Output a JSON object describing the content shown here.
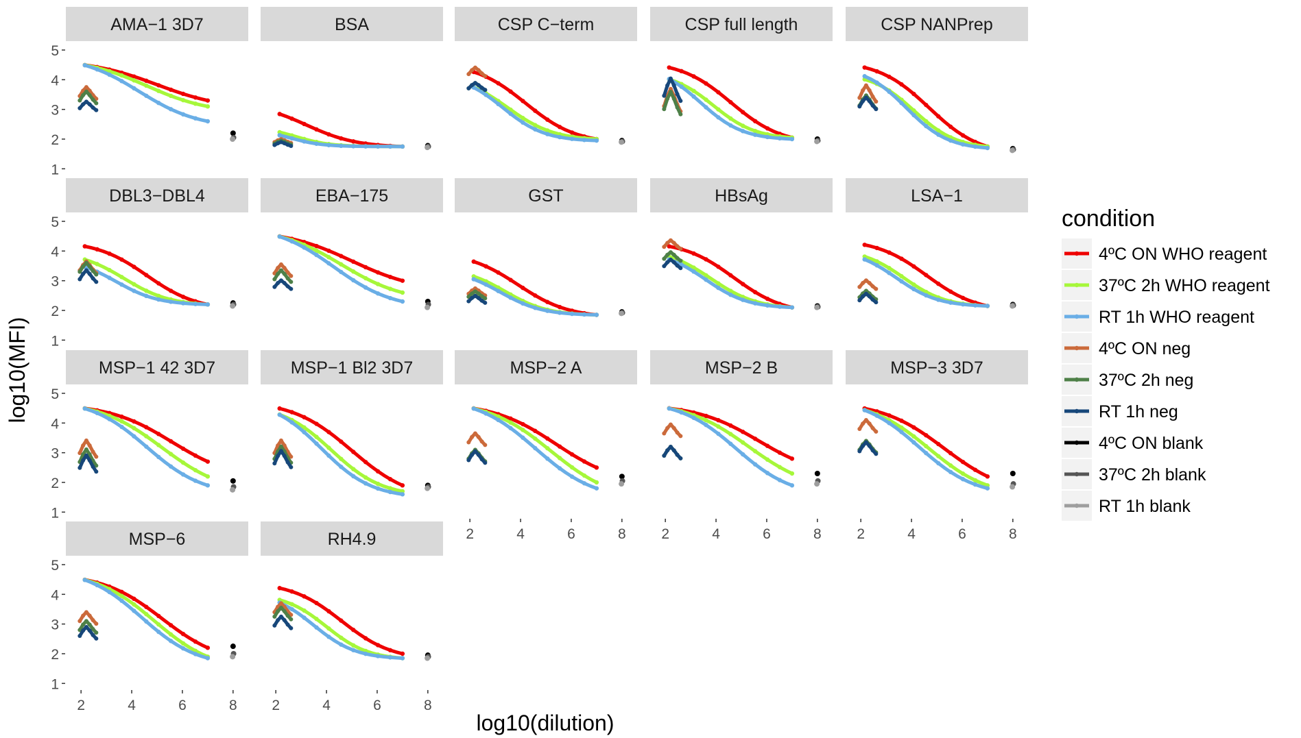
{
  "chart_data": {
    "type": "line",
    "layout": "facet_wrap",
    "xlabel": "log10(dilution)",
    "ylabel": "log10(MFI)",
    "xlim": [
      1.4,
      8.6
    ],
    "ylim": [
      0.8,
      5.3
    ],
    "x_ticks": [
      2,
      4,
      6,
      8
    ],
    "y_ticks": [
      1,
      2,
      3,
      4,
      5
    ],
    "legend": {
      "title": "condition",
      "position": "right",
      "entries": [
        {
          "label": "4ºC ON WHO reagent",
          "color": "#ee0000"
        },
        {
          "label": "37ºC 2h WHO reagent",
          "color": "#a6f73a"
        },
        {
          "label": "RT 1h WHO reagent",
          "color": "#6aaee6"
        },
        {
          "label": "4ºC ON neg",
          "color": "#cb6a3b"
        },
        {
          "label": "37ºC 2h neg",
          "color": "#4e8048"
        },
        {
          "label": "RT 1h neg",
          "color": "#17477a"
        },
        {
          "label": "4ºC ON blank",
          "color": "#000000"
        },
        {
          "label": "37ºC 2h blank",
          "color": "#555555"
        },
        {
          "label": "RT 1h blank",
          "color": "#9e9e9e"
        }
      ]
    },
    "panels": [
      {
        "title": "AMA−1 3D7",
        "params": {
          "reagent": [
            [
              4.5,
              3.3,
              5.0,
              0.75,
              2.1
            ],
            [
              4.5,
              3.1,
              4.6,
              0.8,
              2.1
            ],
            [
              4.5,
              2.6,
              4.3,
              0.85,
              2.1
            ]
          ],
          "neg": [
            [
              3.6,
              0.05
            ],
            [
              3.45,
              0.05
            ],
            [
              3.15,
              0.03
            ]
          ],
          "blank": [
            2.2,
            2.05,
            2.0
          ]
        }
      },
      {
        "title": "BSA",
        "params": {
          "reagent": [
            [
              2.8,
              1.75,
              3.2,
              1.0,
              2.3
            ],
            [
              2.2,
              1.75,
              2.8,
              1.5,
              2.3
            ],
            [
              2.1,
              1.75,
              2.6,
              1.6,
              2.3
            ]
          ],
          "neg": [
            [
              1.95,
              0.0
            ],
            [
              1.9,
              0.0
            ],
            [
              1.85,
              0.0
            ]
          ],
          "blank": [
            1.78,
            1.75,
            1.72
          ]
        }
      },
      {
        "title": "CSP C−term",
        "params": {
          "reagent": [
            [
              4.3,
              2.0,
              4.2,
              1.0,
              2.0
            ],
            [
              3.8,
              2.0,
              3.5,
              1.1,
              2.0
            ],
            [
              3.8,
              1.95,
              3.3,
              1.2,
              2.0
            ]
          ],
          "neg": [
            [
              4.3,
              0.03
            ],
            [
              3.8,
              0.02
            ],
            [
              3.8,
              0.02
            ]
          ],
          "blank": [
            1.95,
            1.92,
            1.9
          ]
        }
      },
      {
        "title": "CSP full length",
        "params": {
          "reagent": [
            [
              4.4,
              2.05,
              4.6,
              1.0,
              2.2
            ],
            [
              4.0,
              2.05,
              3.9,
              1.2,
              2.2
            ],
            [
              4.0,
              2.0,
              3.4,
              1.2,
              2.2
            ]
          ],
          "neg": [
            [
              3.4,
              0.12
            ],
            [
              3.3,
              0.12
            ],
            [
              3.75,
              0.12
            ]
          ],
          "blank": [
            2.0,
            1.95,
            1.92
          ]
        }
      },
      {
        "title": "CSP NANPrep",
        "params": {
          "reagent": [
            [
              4.4,
              1.75,
              4.7,
              1.0,
              2.2
            ],
            [
              4.0,
              1.75,
              4.1,
              1.2,
              2.2
            ],
            [
              4.1,
              1.7,
              3.8,
              1.2,
              2.2
            ]
          ],
          "neg": [
            [
              3.6,
              0.08
            ],
            [
              3.3,
              0.06
            ],
            [
              3.25,
              0.05
            ]
          ],
          "blank": [
            1.68,
            1.65,
            1.62
          ]
        }
      },
      {
        "title": "DBL3−DBL4",
        "params": {
          "reagent": [
            [
              4.15,
              2.2,
              4.6,
              1.0,
              2.2
            ],
            [
              3.7,
              2.2,
              3.7,
              1.1,
              2.2
            ],
            [
              3.45,
              2.2,
              3.4,
              1.2,
              2.2
            ]
          ],
          "neg": [
            [
              3.5,
              0.05
            ],
            [
              3.45,
              0.05
            ],
            [
              3.2,
              0.05
            ]
          ],
          "blank": [
            2.25,
            2.2,
            2.15
          ]
        }
      },
      {
        "title": "EBA−175",
        "params": {
          "reagent": [
            [
              4.5,
              3.0,
              5.0,
              0.75,
              2.1
            ],
            [
              4.5,
              2.6,
              4.6,
              0.8,
              2.1
            ],
            [
              4.5,
              2.3,
              4.3,
              0.85,
              2.1
            ]
          ],
          "neg": [
            [
              3.4,
              0.05
            ],
            [
              3.2,
              0.05
            ],
            [
              2.9,
              0.03
            ]
          ],
          "blank": [
            2.3,
            2.2,
            2.1
          ]
        }
      },
      {
        "title": "GST",
        "params": {
          "reagent": [
            [
              3.6,
              1.85,
              3.9,
              1.0,
              2.3
            ],
            [
              3.1,
              1.85,
              3.4,
              1.2,
              2.3
            ],
            [
              3.0,
              1.85,
              3.2,
              1.2,
              2.3
            ]
          ],
          "neg": [
            [
              2.65,
              0.02
            ],
            [
              2.55,
              0.02
            ],
            [
              2.4,
              0.02
            ]
          ],
          "blank": [
            1.95,
            1.92,
            1.9
          ]
        }
      },
      {
        "title": "HBsAg",
        "params": {
          "reagent": [
            [
              4.15,
              2.1,
              4.7,
              1.0,
              2.2
            ],
            [
              3.8,
              2.1,
              3.8,
              1.1,
              2.2
            ],
            [
              3.7,
              2.1,
              3.6,
              1.2,
              2.2
            ]
          ],
          "neg": [
            [
              4.25,
              0.03
            ],
            [
              3.85,
              0.03
            ],
            [
              3.6,
              0.03
            ]
          ],
          "blank": [
            2.15,
            2.12,
            2.1
          ]
        }
      },
      {
        "title": "LSA−1",
        "params": {
          "reagent": [
            [
              4.2,
              2.15,
              4.6,
              1.0,
              2.2
            ],
            [
              3.8,
              2.15,
              3.7,
              1.2,
              2.2
            ],
            [
              3.7,
              2.15,
              3.4,
              1.2,
              2.2
            ]
          ],
          "neg": [
            [
              2.9,
              0.03
            ],
            [
              2.55,
              0.03
            ],
            [
              2.45,
              0.03
            ]
          ],
          "blank": [
            2.2,
            2.17,
            2.15
          ]
        }
      },
      {
        "title": "MSP−1 42 3D7",
        "params": {
          "reagent": [
            [
              4.5,
              2.7,
              5.6,
              0.8,
              2.1
            ],
            [
              4.5,
              2.2,
              5.2,
              0.8,
              2.1
            ],
            [
              4.5,
              1.9,
              4.6,
              0.9,
              2.1
            ]
          ],
          "neg": [
            [
              3.2,
              0.08
            ],
            [
              2.9,
              0.08
            ],
            [
              2.7,
              0.08
            ]
          ],
          "blank": [
            2.05,
            1.85,
            1.75
          ]
        }
      },
      {
        "title": "MSP−1 Bl2 3D7",
        "params": {
          "reagent": [
            [
              4.5,
              1.9,
              5.0,
              0.85,
              2.1
            ],
            [
              4.3,
              1.7,
              4.2,
              1.0,
              2.1
            ],
            [
              4.3,
              1.6,
              3.8,
              1.0,
              2.1
            ]
          ],
          "neg": [
            [
              3.2,
              0.08
            ],
            [
              3.0,
              0.08
            ],
            [
              2.85,
              0.08
            ]
          ],
          "blank": [
            1.9,
            1.85,
            1.8
          ]
        }
      },
      {
        "title": "MSP−2 A",
        "params": {
          "reagent": [
            [
              4.5,
              2.5,
              5.4,
              0.8,
              2.1
            ],
            [
              4.5,
              2.0,
              5.2,
              0.8,
              2.1
            ],
            [
              4.5,
              1.8,
              4.6,
              0.85,
              2.1
            ]
          ],
          "neg": [
            [
              3.5,
              0.05
            ],
            [
              2.95,
              0.05
            ],
            [
              2.9,
              0.05
            ]
          ],
          "blank": [
            2.2,
            2.05,
            1.95
          ]
        }
      },
      {
        "title": "MSP−2 B",
        "params": {
          "reagent": [
            [
              4.5,
              2.8,
              5.7,
              0.8,
              2.1
            ],
            [
              4.5,
              2.3,
              5.3,
              0.8,
              2.1
            ],
            [
              4.5,
              1.9,
              4.8,
              0.9,
              2.1
            ]
          ],
          "neg": [
            [
              3.8,
              0.05
            ],
            [
              3.05,
              0.05
            ],
            [
              3.05,
              0.05
            ]
          ],
          "blank": [
            2.3,
            2.05,
            1.95
          ]
        }
      },
      {
        "title": "MSP−3 3D7",
        "params": {
          "reagent": [
            [
              4.5,
              2.2,
              5.3,
              0.8,
              2.1
            ],
            [
              4.45,
              1.9,
              4.7,
              0.85,
              2.1
            ],
            [
              4.45,
              1.8,
              4.3,
              0.9,
              2.1
            ]
          ],
          "neg": [
            [
              3.95,
              0.05
            ],
            [
              3.25,
              0.05
            ],
            [
              3.2,
              0.05
            ]
          ],
          "blank": [
            2.3,
            1.95,
            1.85
          ]
        }
      },
      {
        "title": "MSP−6",
        "params": {
          "reagent": [
            [
              4.5,
              2.2,
              5.2,
              0.85,
              2.1
            ],
            [
              4.5,
              1.9,
              4.9,
              0.85,
              2.1
            ],
            [
              4.5,
              1.85,
              4.4,
              0.9,
              2.1
            ]
          ],
          "neg": [
            [
              3.25,
              0.05
            ],
            [
              2.95,
              0.05
            ],
            [
              2.75,
              0.05
            ]
          ],
          "blank": [
            2.25,
            2.0,
            1.9
          ]
        }
      },
      {
        "title": "RH4.9",
        "params": {
          "reagent": [
            [
              4.2,
              2.0,
              4.6,
              1.0,
              2.2
            ],
            [
              3.8,
              1.85,
              4.0,
              1.2,
              2.2
            ],
            [
              3.7,
              1.85,
              3.5,
              1.2,
              2.2
            ]
          ],
          "neg": [
            [
              3.55,
              0.05
            ],
            [
              3.4,
              0.05
            ],
            [
              3.1,
              0.05
            ]
          ],
          "blank": [
            1.95,
            1.9,
            1.85
          ]
        }
      }
    ]
  }
}
